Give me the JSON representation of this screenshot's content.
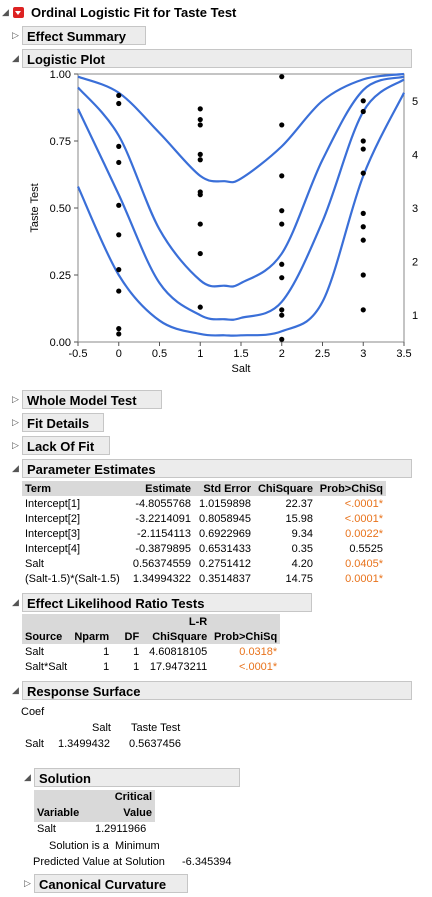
{
  "report_title": "Ordinal Logistic Fit for Taste Test",
  "sections": {
    "effect_summary": "Effect Summary",
    "logistic_plot": "Logistic Plot",
    "whole_model_test": "Whole Model Test",
    "fit_details": "Fit Details",
    "lack_of_fit": "Lack Of Fit",
    "parameter_estimates": "Parameter Estimates",
    "effect_lr_tests": "Effect Likelihood Ratio Tests",
    "response_surface": "Response Surface",
    "solution": "Solution",
    "canonical_curvature": "Canonical Curvature"
  },
  "chart_data": {
    "type": "line",
    "xlabel": "Salt",
    "ylabel": "Taste Test",
    "xlim": [
      -0.5,
      3.5
    ],
    "ylim": [
      0,
      1
    ],
    "x_ticks": [
      "-0.5",
      "0",
      "0.5",
      "1",
      "1.5",
      "2",
      "2.5",
      "3",
      "3.5"
    ],
    "y_ticks": [
      "0.00",
      "0.25",
      "0.50",
      "0.75",
      "1.00"
    ],
    "right_labels": [
      "1",
      "2",
      "3",
      "4",
      "5"
    ],
    "curve_color": "#3a6fd8",
    "series": [
      {
        "x": [
          -0.5,
          0,
          0.5,
          1,
          1.3,
          1.5,
          2,
          2.5,
          3,
          3.5
        ],
        "values": [
          0.58,
          0.25,
          0.08,
          0.03,
          0.025,
          0.025,
          0.04,
          0.15,
          0.62,
          0.93
        ]
      },
      {
        "x": [
          -0.5,
          0,
          0.5,
          1,
          1.3,
          1.5,
          2,
          2.5,
          3,
          3.5
        ],
        "values": [
          0.87,
          0.55,
          0.22,
          0.1,
          0.085,
          0.09,
          0.15,
          0.45,
          0.86,
          0.98
        ]
      },
      {
        "x": [
          -0.5,
          0,
          0.5,
          1,
          1.3,
          1.5,
          2,
          2.5,
          3,
          3.5
        ],
        "values": [
          0.95,
          0.77,
          0.42,
          0.23,
          0.21,
          0.22,
          0.33,
          0.68,
          0.94,
          0.99
        ]
      },
      {
        "x": [
          -0.5,
          0,
          0.5,
          1,
          1.3,
          1.5,
          2,
          2.5,
          3,
          3.5
        ],
        "values": [
          0.99,
          0.93,
          0.78,
          0.62,
          0.6,
          0.61,
          0.73,
          0.9,
          0.98,
          1.0
        ]
      }
    ],
    "points": [
      {
        "x": 0,
        "y": 0.92
      },
      {
        "x": 0,
        "y": 0.89
      },
      {
        "x": 0,
        "y": 0.73
      },
      {
        "x": 0,
        "y": 0.67
      },
      {
        "x": 0,
        "y": 0.51
      },
      {
        "x": 0,
        "y": 0.4
      },
      {
        "x": 0,
        "y": 0.27
      },
      {
        "x": 0,
        "y": 0.19
      },
      {
        "x": 0,
        "y": 0.05
      },
      {
        "x": 0,
        "y": 0.03
      },
      {
        "x": 1,
        "y": 0.87
      },
      {
        "x": 1,
        "y": 0.83
      },
      {
        "x": 1,
        "y": 0.81
      },
      {
        "x": 1,
        "y": 0.7
      },
      {
        "x": 1,
        "y": 0.68
      },
      {
        "x": 1,
        "y": 0.56
      },
      {
        "x": 1,
        "y": 0.55
      },
      {
        "x": 1,
        "y": 0.44
      },
      {
        "x": 1,
        "y": 0.33
      },
      {
        "x": 1,
        "y": 0.13
      },
      {
        "x": 2,
        "y": 0.99
      },
      {
        "x": 2,
        "y": 0.81
      },
      {
        "x": 2,
        "y": 0.62
      },
      {
        "x": 2,
        "y": 0.49
      },
      {
        "x": 2,
        "y": 0.44
      },
      {
        "x": 2,
        "y": 0.29
      },
      {
        "x": 2,
        "y": 0.24
      },
      {
        "x": 2,
        "y": 0.12
      },
      {
        "x": 2,
        "y": 0.1
      },
      {
        "x": 2,
        "y": 0.01
      },
      {
        "x": 3,
        "y": 0.9
      },
      {
        "x": 3,
        "y": 0.86
      },
      {
        "x": 3,
        "y": 0.75
      },
      {
        "x": 3,
        "y": 0.72
      },
      {
        "x": 3,
        "y": 0.63
      },
      {
        "x": 3,
        "y": 0.48
      },
      {
        "x": 3,
        "y": 0.43
      },
      {
        "x": 3,
        "y": 0.38
      },
      {
        "x": 3,
        "y": 0.25
      },
      {
        "x": 3,
        "y": 0.12
      }
    ]
  },
  "parameter_estimates": {
    "headers": [
      "Term",
      "Estimate",
      "Std Error",
      "ChiSquare",
      "Prob>ChiSq"
    ],
    "rows": [
      [
        "Intercept[1]",
        "-4.8055768",
        "1.0159898",
        "22.37",
        "<.0001*"
      ],
      [
        "Intercept[2]",
        "-3.2214091",
        "0.8058945",
        "15.98",
        "<.0001*"
      ],
      [
        "Intercept[3]",
        "-2.1154113",
        "0.6922969",
        "9.34",
        "0.0022*"
      ],
      [
        "Intercept[4]",
        "-0.3879895",
        "0.6531433",
        "0.35",
        "0.5525"
      ],
      [
        "Salt",
        "0.56374559",
        "0.2751412",
        "4.20",
        "0.0405*"
      ],
      [
        "(Salt-1.5)*(Salt-1.5)",
        "1.34994322",
        "0.3514837",
        "14.75",
        "0.0001*"
      ]
    ]
  },
  "effect_lr_tests": {
    "headers": [
      "Source",
      "Nparm",
      "DF",
      "L-R",
      "ChiSquare",
      "Prob>ChiSq"
    ],
    "rows": [
      [
        "Salt",
        "1",
        "1",
        "4.60818105",
        "0.0318*"
      ],
      [
        "Salt*Salt",
        "1",
        "1",
        "17.9473211",
        "<.0001*"
      ]
    ]
  },
  "response_surface": {
    "coef_label": "Coef",
    "col1": "Salt",
    "col2": "Taste Test",
    "row_label": "Salt",
    "v1": "1.3499432",
    "v2": "0.5637456"
  },
  "solution": {
    "variable_header": "Variable",
    "critical_header1": "Critical",
    "critical_header2": "Value",
    "variable": "Salt",
    "value": "1.2911966",
    "note": "Solution is a  Minimum",
    "predicted_label": "Predicted Value at Solution",
    "predicted_value": "-6.345394"
  },
  "colors": {
    "significant": "#e8731c",
    "header_bg": "#ececec",
    "red_button": "#d22222"
  }
}
